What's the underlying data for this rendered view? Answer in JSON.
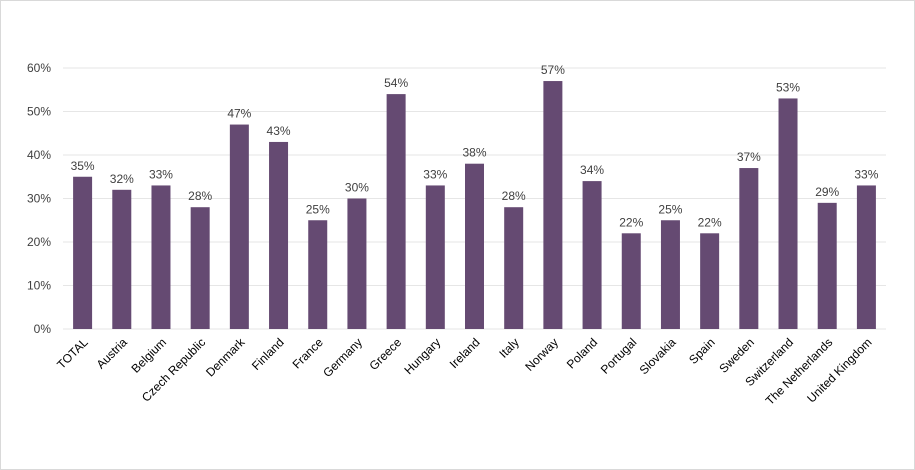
{
  "chart_data": {
    "type": "bar",
    "title": "",
    "xlabel": "",
    "ylabel": "",
    "ylim": [
      0,
      60
    ],
    "y_ticks": [
      "0%",
      "10%",
      "20%",
      "30%",
      "40%",
      "50%",
      "60%"
    ],
    "y_tick_values": [
      0,
      10,
      20,
      30,
      40,
      50,
      60
    ],
    "grid": true,
    "legend": "none",
    "bar_color": "#654a72",
    "categories": [
      "TOTAL",
      "Austria",
      "Belgium",
      "Czech Republic",
      "Denmark",
      "Finland",
      "France",
      "Germany",
      "Greece",
      "Hungary",
      "Ireland",
      "Italy",
      "Norway",
      "Poland",
      "Portugal",
      "Slovakia",
      "Spain",
      "Sweden",
      "Switzerland",
      "The Netherlands",
      "United Kingdom"
    ],
    "values": [
      35,
      32,
      33,
      28,
      47,
      43,
      25,
      30,
      54,
      33,
      38,
      28,
      57,
      34,
      22,
      25,
      22,
      37,
      53,
      29,
      33
    ],
    "data_labels": [
      "35%",
      "32%",
      "33%",
      "28%",
      "47%",
      "43%",
      "25%",
      "30%",
      "54%",
      "33%",
      "38%",
      "28%",
      "57%",
      "34%",
      "22%",
      "25%",
      "22%",
      "37%",
      "53%",
      "29%",
      "33%"
    ]
  }
}
